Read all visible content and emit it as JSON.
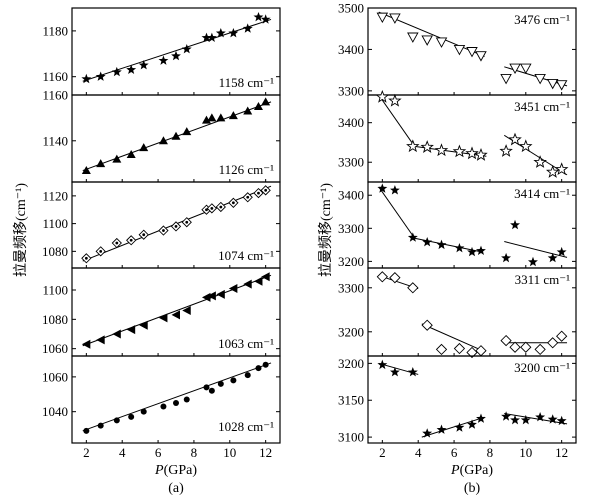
{
  "figure": {
    "ylabel_left": "拉曼频移(cm⁻¹)",
    "ylabel_right": "拉曼频移(cm⁻¹)",
    "xlabel_italic": "P",
    "xlabel_rest": "(GPa)",
    "caption_a": "(a)",
    "caption_b": "(b)"
  },
  "chart_data": [
    {
      "panel": "a1",
      "type": "scatter",
      "label": "1158 cm⁻¹",
      "marker": "filled-star",
      "xlim": [
        1.2,
        12.8
      ],
      "ylim": [
        1152,
        1190
      ],
      "yticks": [
        1160,
        1180
      ],
      "xticks": [],
      "x": [
        2,
        2.8,
        3.7,
        4.5,
        5.2,
        6.3,
        7,
        7.6,
        8.7,
        9,
        9.5,
        10.2,
        11,
        11.6,
        12
      ],
      "y": [
        1159,
        1160,
        1162,
        1163,
        1165,
        1167,
        1169,
        1172,
        1177,
        1177,
        1179,
        1179,
        1181,
        1186,
        1185
      ],
      "fit": [
        [
          1.8,
          1158
        ],
        [
          12.3,
          1185
        ]
      ]
    },
    {
      "panel": "a2",
      "type": "scatter",
      "label": "1126 cm⁻¹",
      "marker": "filled-triangle",
      "xlim": [
        1.2,
        12.8
      ],
      "ylim": [
        1122,
        1160
      ],
      "yticks": [
        1140,
        1160
      ],
      "xticks": [],
      "x": [
        2,
        2.8,
        3.7,
        4.5,
        5.2,
        6.3,
        7,
        7.6,
        8.7,
        9,
        9.5,
        10.2,
        11,
        11.6,
        12
      ],
      "y": [
        1127,
        1130,
        1132,
        1134,
        1137,
        1140,
        1142,
        1144,
        1149,
        1150,
        1150,
        1151,
        1153,
        1155,
        1157
      ],
      "fit": [
        [
          1.8,
          1127
        ],
        [
          12.3,
          1157
        ]
      ]
    },
    {
      "panel": "a3",
      "type": "scatter",
      "label": "1074 cm⁻¹",
      "marker": "diamond-dot",
      "xlim": [
        1.2,
        12.8
      ],
      "ylim": [
        1068,
        1130
      ],
      "yticks": [
        1080,
        1100,
        1120
      ],
      "xticks": [],
      "x": [
        2,
        2.8,
        3.7,
        4.5,
        5.2,
        6.3,
        7,
        7.6,
        8.7,
        9,
        9.5,
        10.2,
        11,
        11.6,
        12
      ],
      "y": [
        1075,
        1080,
        1086,
        1088,
        1092,
        1095,
        1098,
        1101,
        1110,
        1111,
        1112,
        1115,
        1119,
        1122,
        1124
      ],
      "fit": [
        [
          1.8,
          1073
        ],
        [
          12.3,
          1127
        ]
      ]
    },
    {
      "panel": "a4",
      "type": "scatter",
      "label": "1063 cm⁻¹",
      "marker": "left-triangle",
      "xlim": [
        1.2,
        12.8
      ],
      "ylim": [
        1055,
        1115
      ],
      "yticks": [
        1060,
        1080,
        1100
      ],
      "xticks": [],
      "x": [
        2,
        2.8,
        3.7,
        4.5,
        5.2,
        6.3,
        7,
        7.6,
        8.7,
        9,
        9.5,
        10.2,
        11,
        11.6,
        12
      ],
      "y": [
        1063,
        1066,
        1070,
        1073,
        1076,
        1081,
        1083,
        1086,
        1095,
        1096,
        1097,
        1101,
        1104,
        1106,
        1109
      ],
      "fit": [
        [
          1.8,
          1062
        ],
        [
          12.3,
          1110
        ]
      ]
    },
    {
      "panel": "a5",
      "type": "scatter",
      "label": "1028 cm⁻¹",
      "marker": "filled-circle",
      "xlim": [
        1.2,
        12.8
      ],
      "ylim": [
        1022,
        1072
      ],
      "yticks": [
        1040,
        1060
      ],
      "xticks": [
        2,
        4,
        6,
        8,
        10,
        12
      ],
      "x": [
        2,
        2.8,
        3.7,
        4.5,
        5.2,
        6.3,
        7,
        7.6,
        8.7,
        9,
        9.5,
        10.2,
        11,
        11.6,
        12
      ],
      "y": [
        1029,
        1032,
        1035,
        1037,
        1040,
        1043,
        1045,
        1047,
        1054,
        1052,
        1056,
        1058,
        1061,
        1065,
        1067
      ],
      "fit": [
        [
          1.8,
          1029
        ],
        [
          12.3,
          1068
        ]
      ]
    },
    {
      "panel": "b1",
      "type": "scatter",
      "label": "3476 cm⁻¹",
      "marker": "open-down-triangle",
      "xlim": [
        1.2,
        12.8
      ],
      "ylim": [
        3290,
        3500
      ],
      "yticks": [
        3300,
        3400,
        3500
      ],
      "xticks": [],
      "x": [
        2,
        2.7,
        3.7,
        4.5,
        5.3,
        6.3,
        7,
        7.5,
        8.9,
        9.4,
        10,
        10.8,
        11.5,
        12
      ],
      "y": [
        3478,
        3476,
        3430,
        3423,
        3418,
        3400,
        3395,
        3385,
        3330,
        3355,
        3355,
        3330,
        3318,
        3315
      ],
      "fits": [
        [
          [
            1.8,
            3490
          ],
          [
            7.7,
            3383
          ]
        ],
        [
          [
            8.8,
            3358
          ],
          [
            12.3,
            3312
          ]
        ]
      ]
    },
    {
      "panel": "b2",
      "type": "scatter",
      "label": "3451 cm⁻¹",
      "marker": "open-star",
      "xlim": [
        1.2,
        12.8
      ],
      "ylim": [
        3250,
        3470
      ],
      "yticks": [
        3300,
        3400
      ],
      "xticks": [],
      "x": [
        2,
        2.7,
        3.7,
        4.5,
        5.3,
        6.3,
        7,
        7.5,
        8.9,
        9.4,
        10,
        10.8,
        11.5,
        12
      ],
      "y": [
        3465,
        3455,
        3340,
        3338,
        3330,
        3327,
        3322,
        3318,
        3328,
        3357,
        3340,
        3300,
        3275,
        3282
      ],
      "fits": [
        [
          [
            1.8,
            3470
          ],
          [
            3.8,
            3340
          ]
        ],
        [
          [
            3.8,
            3340
          ],
          [
            7.8,
            3315
          ]
        ],
        [
          [
            8.8,
            3368
          ],
          [
            12.3,
            3268
          ]
        ]
      ]
    },
    {
      "panel": "b3",
      "type": "scatter",
      "label": "3414 cm⁻¹",
      "marker": "filled-star",
      "xlim": [
        1.2,
        12.8
      ],
      "ylim": [
        3180,
        3440
      ],
      "yticks": [
        3200,
        3300,
        3400
      ],
      "xticks": [],
      "x": [
        2,
        2.7,
        3.7,
        4.5,
        5.3,
        6.3,
        7,
        7.5,
        8.9,
        9.4,
        10.4,
        11.5,
        12
      ],
      "y": [
        3420,
        3415,
        3272,
        3258,
        3250,
        3240,
        3228,
        3232,
        3210,
        3310,
        3198,
        3210,
        3228
      ],
      "fits": [
        [
          [
            1.8,
            3425
          ],
          [
            3.8,
            3270
          ]
        ],
        [
          [
            3.8,
            3270
          ],
          [
            7.6,
            3228
          ]
        ],
        [
          [
            8.8,
            3260
          ],
          [
            12.3,
            3212
          ]
        ]
      ]
    },
    {
      "panel": "b4",
      "type": "scatter",
      "label": "3311 cm⁻¹",
      "marker": "open-diamond",
      "xlim": [
        1.2,
        12.8
      ],
      "ylim": [
        3145,
        3345
      ],
      "yticks": [
        3200,
        3300
      ],
      "xticks": [],
      "x": [
        2,
        2.7,
        3.7,
        4.5,
        5.3,
        6.3,
        7,
        7.5,
        8.9,
        9.4,
        10,
        10.8,
        11.5,
        12
      ],
      "y": [
        3325,
        3323,
        3300,
        3215,
        3160,
        3162,
        3153,
        3157,
        3180,
        3165,
        3165,
        3160,
        3175,
        3190
      ],
      "fits": [
        [
          [
            1.8,
            3328
          ],
          [
            4,
            3298
          ]
        ],
        [
          [
            4.2,
            3218
          ],
          [
            7.7,
            3155
          ]
        ],
        [
          [
            8.8,
            3175
          ],
          [
            12.3,
            3175
          ]
        ]
      ]
    },
    {
      "panel": "b5",
      "type": "scatter",
      "label": "3200 cm⁻¹",
      "marker": "filled-star",
      "xlim": [
        1.2,
        12.8
      ],
      "ylim": [
        3092,
        3210
      ],
      "yticks": [
        3100,
        3150,
        3200
      ],
      "xticks": [
        2,
        4,
        6,
        8,
        10,
        12
      ],
      "x": [
        2,
        2.7,
        3.7,
        4.5,
        5.3,
        6.3,
        7,
        7.5,
        8.9,
        9.4,
        10,
        10.8,
        11.5,
        12
      ],
      "y": [
        3198,
        3188,
        3188,
        3105,
        3110,
        3113,
        3117,
        3125,
        3128,
        3123,
        3123,
        3127,
        3124,
        3122
      ],
      "fits": [
        [
          [
            1.8,
            3200
          ],
          [
            4,
            3185
          ]
        ],
        [
          [
            4.2,
            3100
          ],
          [
            7.7,
            3127
          ]
        ],
        [
          [
            8.8,
            3132
          ],
          [
            12.3,
            3118
          ]
        ]
      ]
    }
  ]
}
